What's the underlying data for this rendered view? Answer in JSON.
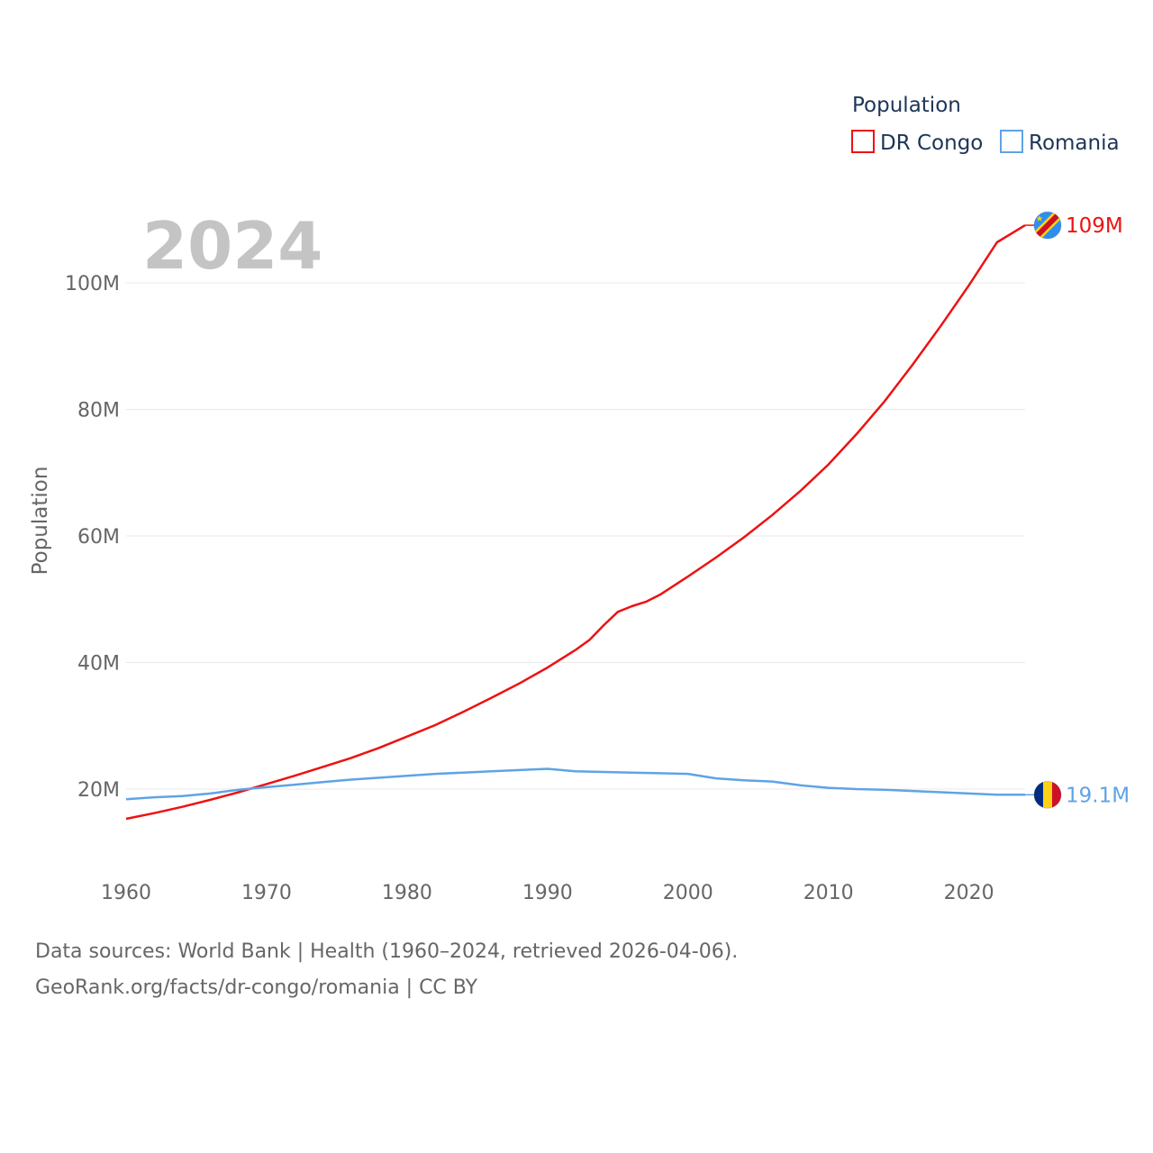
{
  "chart_data": {
    "type": "line",
    "title": "",
    "year_label": "2024",
    "xlabel": "",
    "ylabel": "Population",
    "xlim": [
      1960,
      2024
    ],
    "ylim": [
      10000000,
      112000000
    ],
    "x_ticks": [
      1960,
      1970,
      1980,
      1990,
      2000,
      2010,
      2020
    ],
    "y_ticks": [
      {
        "value": 20000000,
        "label": "20M"
      },
      {
        "value": 40000000,
        "label": "40M"
      },
      {
        "value": 60000000,
        "label": "60M"
      },
      {
        "value": 80000000,
        "label": "80M"
      },
      {
        "value": 100000000,
        "label": "100M"
      }
    ],
    "legend": {
      "title": "Population",
      "position": "top-right"
    },
    "series": [
      {
        "name": "DR Congo",
        "color": "#ee1111",
        "end_label": "109M",
        "flag_icon": "dr-congo-flag-icon",
        "x": [
          1960,
          1962,
          1964,
          1966,
          1968,
          1970,
          1972,
          1974,
          1976,
          1978,
          1980,
          1982,
          1984,
          1986,
          1988,
          1990,
          1992,
          1993,
          1994,
          1995,
          1996,
          1997,
          1998,
          2000,
          2002,
          2004,
          2006,
          2008,
          2010,
          2012,
          2014,
          2016,
          2018,
          2020,
          2022,
          2024
        ],
        "values": [
          15300000,
          16200000,
          17200000,
          18300000,
          19500000,
          20800000,
          22100000,
          23500000,
          24900000,
          26500000,
          28300000,
          30100000,
          32200000,
          34400000,
          36700000,
          39200000,
          42000000,
          43600000,
          45900000,
          48000000,
          48900000,
          49600000,
          50700000,
          53600000,
          56600000,
          59800000,
          63300000,
          67100000,
          71300000,
          76100000,
          81300000,
          87100000,
          93200000,
          99600000,
          106400000,
          109100000
        ]
      },
      {
        "name": "Romania",
        "color": "#5fa3e6",
        "end_label": "19.1M",
        "flag_icon": "romania-flag-icon",
        "x": [
          1960,
          1962,
          1964,
          1966,
          1968,
          1970,
          1972,
          1974,
          1976,
          1978,
          1980,
          1982,
          1984,
          1986,
          1988,
          1990,
          1992,
          1994,
          1996,
          1998,
          2000,
          2002,
          2004,
          2006,
          2008,
          2010,
          2012,
          2014,
          2016,
          2018,
          2020,
          2022,
          2024
        ],
        "values": [
          18400000,
          18700000,
          18900000,
          19300000,
          19900000,
          20300000,
          20700000,
          21100000,
          21500000,
          21800000,
          22100000,
          22400000,
          22600000,
          22800000,
          23000000,
          23200000,
          22800000,
          22700000,
          22600000,
          22500000,
          22400000,
          21700000,
          21400000,
          21200000,
          20600000,
          20200000,
          20000000,
          19900000,
          19700000,
          19500000,
          19300000,
          19100000,
          19100000
        ]
      }
    ]
  },
  "footer": {
    "line1": "Data sources: World Bank | Health (1960–2024, retrieved 2026-04-06).",
    "line2": "GeoRank.org/facts/dr-congo/romania | CC BY"
  },
  "colors": {
    "grid": "#e8e8e8",
    "tick_text": "#666666",
    "year_watermark": "#c4c4c4",
    "legend_text": "#1d3557"
  }
}
